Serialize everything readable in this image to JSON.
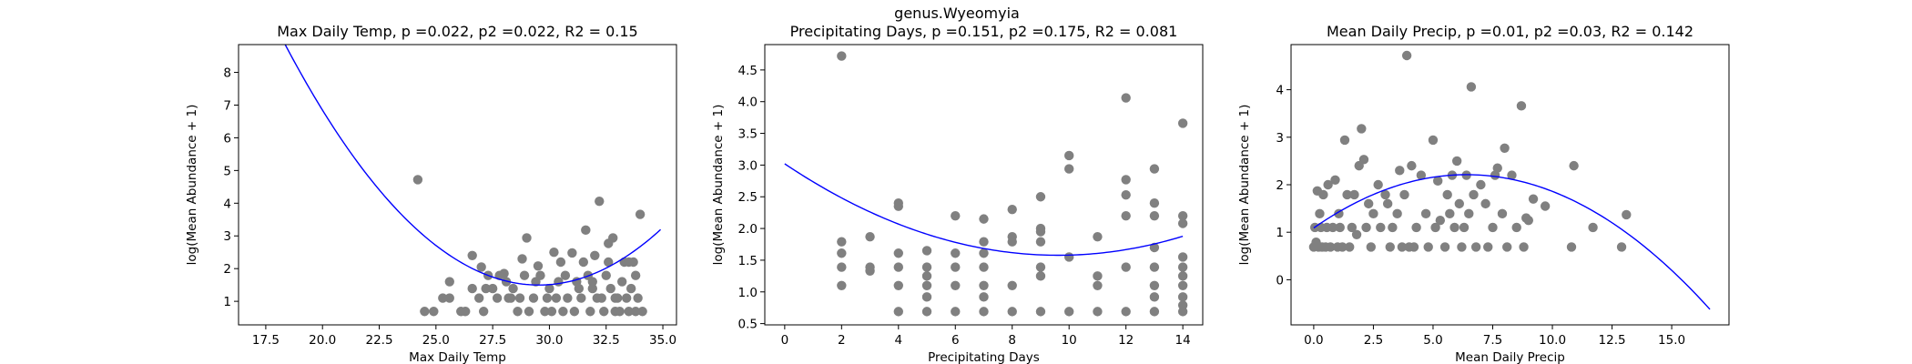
{
  "figure": {
    "suptitle": "genus.Wyeomyia"
  },
  "colors": {
    "points": "#808080",
    "curve": "#0000ff",
    "axes": "#000000"
  },
  "chart_data": [
    {
      "type": "scatter",
      "title": "Max Daily Temp, p =0.022, p2 =0.022, R2 = 0.15",
      "xlabel": "Max Daily Temp",
      "ylabel": "log(Mean Abundance + 1)",
      "xlim": [
        16.3,
        35.6
      ],
      "ylim": [
        0.28,
        8.85
      ],
      "xticks": [
        17.5,
        20.0,
        22.5,
        25.0,
        27.5,
        30.0,
        32.5,
        35.0
      ],
      "xtick_labels": [
        "17.5",
        "20.0",
        "22.5",
        "25.0",
        "27.5",
        "30.0",
        "32.5",
        "35.0"
      ],
      "yticks": [
        1,
        2,
        3,
        4,
        5,
        6,
        7,
        8
      ],
      "ytick_labels": [
        "1",
        "2",
        "3",
        "4",
        "5",
        "6",
        "7",
        "8"
      ],
      "fit": {
        "type": "quadratic",
        "coef": [
          52.826,
          -3.476,
          0.05885
        ],
        "x_range": [
          17.1,
          34.9
        ]
      },
      "points": [
        [
          24.2,
          4.72
        ],
        [
          24.5,
          0.69
        ],
        [
          24.9,
          0.69
        ],
        [
          25.3,
          1.1
        ],
        [
          25.6,
          1.1
        ],
        [
          25.6,
          1.6
        ],
        [
          26.1,
          0.69
        ],
        [
          26.3,
          0.69
        ],
        [
          26.6,
          2.4
        ],
        [
          26.6,
          1.39
        ],
        [
          26.9,
          1.1
        ],
        [
          27.0,
          2.05
        ],
        [
          27.1,
          0.69
        ],
        [
          27.3,
          1.79
        ],
        [
          27.5,
          1.39
        ],
        [
          27.7,
          1.1
        ],
        [
          27.8,
          1.79
        ],
        [
          28.0,
          1.85
        ],
        [
          28.1,
          1.6
        ],
        [
          28.2,
          1.1
        ],
        [
          28.4,
          1.39
        ],
        [
          28.6,
          0.69
        ],
        [
          28.7,
          1.1
        ],
        [
          28.8,
          2.3
        ],
        [
          28.9,
          1.79
        ],
        [
          29.0,
          2.94
        ],
        [
          29.1,
          0.69
        ],
        [
          29.3,
          1.1
        ],
        [
          29.4,
          1.6
        ],
        [
          29.5,
          2.08
        ],
        [
          29.8,
          0.69
        ],
        [
          29.9,
          1.1
        ],
        [
          30.0,
          1.39
        ],
        [
          30.1,
          0.69
        ],
        [
          30.2,
          2.5
        ],
        [
          30.3,
          1.1
        ],
        [
          30.5,
          2.2
        ],
        [
          30.6,
          0.69
        ],
        [
          30.7,
          1.79
        ],
        [
          30.8,
          1.1
        ],
        [
          31.0,
          2.48
        ],
        [
          31.1,
          0.69
        ],
        [
          31.3,
          1.39
        ],
        [
          31.4,
          1.1
        ],
        [
          31.5,
          2.2
        ],
        [
          31.6,
          3.18
        ],
        [
          31.7,
          1.79
        ],
        [
          31.8,
          0.69
        ],
        [
          31.9,
          1.6
        ],
        [
          32.0,
          2.4
        ],
        [
          32.1,
          1.1
        ],
        [
          32.2,
          4.06
        ],
        [
          32.3,
          1.1
        ],
        [
          32.4,
          0.69
        ],
        [
          32.5,
          1.79
        ],
        [
          32.6,
          2.2
        ],
        [
          32.7,
          1.39
        ],
        [
          32.8,
          2.94
        ],
        [
          32.9,
          0.69
        ],
        [
          33.0,
          1.1
        ],
        [
          33.1,
          0.69
        ],
        [
          33.2,
          1.6
        ],
        [
          33.3,
          2.2
        ],
        [
          33.4,
          1.1
        ],
        [
          33.5,
          0.69
        ],
        [
          33.6,
          1.39
        ],
        [
          33.7,
          2.2
        ],
        [
          33.8,
          0.69
        ],
        [
          33.9,
          1.1
        ],
        [
          34.0,
          3.66
        ],
        [
          34.1,
          0.69
        ],
        [
          33.8,
          1.79
        ],
        [
          32.6,
          2.77
        ],
        [
          31.9,
          1.39
        ],
        [
          29.6,
          1.79
        ],
        [
          30.4,
          1.6
        ],
        [
          28.3,
          1.1
        ],
        [
          27.2,
          1.39
        ],
        [
          32.9,
          1.1
        ],
        [
          33.5,
          2.2
        ],
        [
          31.2,
          1.6
        ]
      ]
    },
    {
      "type": "scatter",
      "title": "Precipitating Days, p =0.151, p2 =0.175, R2 = 0.081",
      "xlabel": "Precipitating Days",
      "ylabel": "log(Mean Abundance + 1)",
      "xlim": [
        -0.7,
        14.7
      ],
      "ylim": [
        0.48,
        4.9
      ],
      "xticks": [
        0,
        2,
        4,
        6,
        8,
        10,
        12,
        14
      ],
      "xtick_labels": [
        "0",
        "2",
        "4",
        "6",
        "8",
        "10",
        "12",
        "14"
      ],
      "yticks": [
        0.5,
        1.0,
        1.5,
        2.0,
        2.5,
        3.0,
        3.5,
        4.0,
        4.5
      ],
      "ytick_labels": [
        "0.5",
        "1.0",
        "1.5",
        "2.0",
        "2.5",
        "3.0",
        "3.5",
        "4.0",
        "4.5"
      ],
      "fit": {
        "type": "quadratic",
        "coef": [
          3.02,
          -0.3,
          0.0156
        ],
        "x_range": [
          0,
          14
        ]
      },
      "points": [
        [
          2,
          4.72
        ],
        [
          2,
          1.79
        ],
        [
          2,
          1.61
        ],
        [
          2,
          1.39
        ],
        [
          2,
          1.1
        ],
        [
          3,
          1.87
        ],
        [
          3,
          1.39
        ],
        [
          3,
          1.33
        ],
        [
          4,
          2.4
        ],
        [
          4,
          2.35
        ],
        [
          4,
          1.61
        ],
        [
          4,
          1.39
        ],
        [
          4,
          1.1
        ],
        [
          4,
          0.69
        ],
        [
          5,
          1.65
        ],
        [
          5,
          1.39
        ],
        [
          5,
          1.25
        ],
        [
          5,
          1.1
        ],
        [
          5,
          0.92
        ],
        [
          5,
          0.69
        ],
        [
          6,
          2.2
        ],
        [
          6,
          1.61
        ],
        [
          6,
          1.39
        ],
        [
          6,
          1.1
        ],
        [
          6,
          0.69
        ],
        [
          7,
          2.15
        ],
        [
          7,
          1.79
        ],
        [
          7,
          1.61
        ],
        [
          7,
          1.39
        ],
        [
          7,
          1.1
        ],
        [
          7,
          0.92
        ],
        [
          7,
          0.69
        ],
        [
          8,
          2.3
        ],
        [
          8,
          1.87
        ],
        [
          8,
          1.79
        ],
        [
          8,
          1.1
        ],
        [
          8,
          0.69
        ],
        [
          9,
          2.5
        ],
        [
          9,
          2.0
        ],
        [
          9,
          1.95
        ],
        [
          9,
          1.79
        ],
        [
          9,
          1.39
        ],
        [
          9,
          1.25
        ],
        [
          9,
          0.69
        ],
        [
          10,
          3.15
        ],
        [
          10,
          2.94
        ],
        [
          10,
          1.55
        ],
        [
          10,
          0.69
        ],
        [
          11,
          1.87
        ],
        [
          11,
          1.25
        ],
        [
          11,
          1.1
        ],
        [
          11,
          0.69
        ],
        [
          12,
          4.06
        ],
        [
          12,
          2.77
        ],
        [
          12,
          2.53
        ],
        [
          12,
          2.2
        ],
        [
          12,
          1.39
        ],
        [
          12,
          0.69
        ],
        [
          13,
          2.94
        ],
        [
          13,
          2.4
        ],
        [
          13,
          2.2
        ],
        [
          13,
          1.7
        ],
        [
          13,
          1.39
        ],
        [
          13,
          1.1
        ],
        [
          13,
          0.92
        ],
        [
          13,
          0.69
        ],
        [
          14,
          3.66
        ],
        [
          14,
          2.2
        ],
        [
          14,
          2.08
        ],
        [
          14,
          1.55
        ],
        [
          14,
          1.39
        ],
        [
          14,
          1.25
        ],
        [
          14,
          1.1
        ],
        [
          14,
          0.92
        ],
        [
          14,
          0.79
        ],
        [
          14,
          0.69
        ]
      ]
    },
    {
      "type": "scatter",
      "title": "Mean Daily Precip, p =0.01, p2 =0.03, R2 = 0.142",
      "xlabel": "Mean Daily Precip",
      "ylabel": "log(Mean Abundance + 1)",
      "xlim": [
        -0.95,
        17.4
      ],
      "ylim": [
        -0.95,
        4.95
      ],
      "xticks": [
        0.0,
        2.5,
        5.0,
        7.5,
        10.0,
        12.5,
        15.0
      ],
      "xtick_labels": [
        "0.0",
        "2.5",
        "5.0",
        "7.5",
        "10.0",
        "12.5",
        "15.0"
      ],
      "yticks": [
        0,
        1,
        2,
        3,
        4
      ],
      "ytick_labels": [
        "0",
        "1",
        "2",
        "3",
        "4"
      ],
      "fit": {
        "type": "quadratic",
        "coef": [
          1.09,
          0.35,
          -0.0273
        ],
        "x_range": [
          0,
          16.6
        ]
      },
      "points": [
        [
          0.0,
          0.69
        ],
        [
          0.05,
          1.1
        ],
        [
          0.1,
          0.79
        ],
        [
          0.15,
          1.87
        ],
        [
          0.2,
          0.69
        ],
        [
          0.25,
          1.39
        ],
        [
          0.3,
          1.1
        ],
        [
          0.35,
          0.69
        ],
        [
          0.4,
          1.79
        ],
        [
          0.5,
          0.69
        ],
        [
          0.55,
          1.1
        ],
        [
          0.6,
          2.0
        ],
        [
          0.7,
          0.69
        ],
        [
          0.8,
          1.1
        ],
        [
          0.9,
          2.1
        ],
        [
          1.0,
          0.69
        ],
        [
          1.05,
          1.39
        ],
        [
          1.1,
          1.1
        ],
        [
          1.2,
          0.69
        ],
        [
          1.3,
          2.94
        ],
        [
          1.4,
          1.79
        ],
        [
          1.5,
          0.69
        ],
        [
          1.6,
          1.1
        ],
        [
          1.7,
          1.79
        ],
        [
          1.8,
          0.95
        ],
        [
          1.9,
          2.4
        ],
        [
          2.0,
          3.18
        ],
        [
          2.1,
          2.53
        ],
        [
          2.2,
          1.1
        ],
        [
          2.3,
          1.6
        ],
        [
          2.4,
          0.69
        ],
        [
          2.5,
          1.39
        ],
        [
          2.7,
          2.0
        ],
        [
          2.8,
          1.1
        ],
        [
          3.0,
          1.79
        ],
        [
          3.1,
          1.6
        ],
        [
          3.2,
          0.69
        ],
        [
          3.3,
          1.1
        ],
        [
          3.5,
          1.39
        ],
        [
          3.6,
          2.3
        ],
        [
          3.7,
          0.69
        ],
        [
          3.8,
          1.79
        ],
        [
          3.9,
          4.72
        ],
        [
          4.0,
          0.69
        ],
        [
          4.1,
          2.4
        ],
        [
          4.2,
          0.69
        ],
        [
          4.3,
          1.1
        ],
        [
          4.5,
          2.2
        ],
        [
          4.7,
          1.39
        ],
        [
          4.8,
          0.69
        ],
        [
          5.0,
          2.94
        ],
        [
          5.1,
          1.1
        ],
        [
          5.2,
          2.08
        ],
        [
          5.3,
          1.25
        ],
        [
          5.5,
          0.69
        ],
        [
          5.6,
          1.79
        ],
        [
          5.7,
          1.39
        ],
        [
          5.8,
          2.2
        ],
        [
          5.9,
          1.1
        ],
        [
          6.0,
          2.5
        ],
        [
          6.1,
          1.6
        ],
        [
          6.2,
          0.69
        ],
        [
          6.3,
          1.1
        ],
        [
          6.4,
          2.2
        ],
        [
          6.5,
          1.39
        ],
        [
          6.6,
          4.06
        ],
        [
          6.7,
          1.79
        ],
        [
          6.8,
          0.69
        ],
        [
          7.0,
          2.0
        ],
        [
          7.2,
          1.6
        ],
        [
          7.3,
          0.69
        ],
        [
          7.5,
          1.1
        ],
        [
          7.6,
          2.2
        ],
        [
          7.7,
          2.35
        ],
        [
          7.9,
          1.39
        ],
        [
          8.0,
          2.77
        ],
        [
          8.1,
          0.69
        ],
        [
          8.3,
          2.2
        ],
        [
          8.5,
          1.1
        ],
        [
          8.7,
          3.66
        ],
        [
          8.8,
          0.69
        ],
        [
          8.9,
          1.3
        ],
        [
          9.0,
          1.25
        ],
        [
          9.2,
          1.7
        ],
        [
          9.7,
          1.55
        ],
        [
          10.8,
          0.69
        ],
        [
          10.9,
          2.4
        ],
        [
          11.7,
          1.1
        ],
        [
          12.9,
          0.69
        ],
        [
          13.1,
          1.37
        ]
      ]
    }
  ]
}
